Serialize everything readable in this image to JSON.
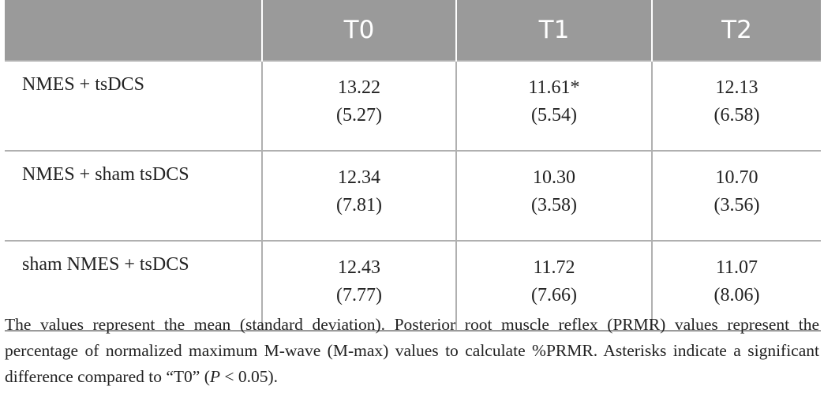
{
  "table": {
    "columns": [
      "",
      "T0",
      "T1",
      "T2"
    ],
    "rows": [
      {
        "label": "NMES + tsDCS",
        "cells": [
          {
            "mean": "13.22",
            "sd": "(5.27)"
          },
          {
            "mean": "11.61*",
            "sd": "(5.54)"
          },
          {
            "mean": "12.13",
            "sd": "(6.58)"
          }
        ]
      },
      {
        "label": "NMES + sham tsDCS",
        "cells": [
          {
            "mean": "12.34",
            "sd": "(7.81)"
          },
          {
            "mean": "10.30",
            "sd": "(3.58)"
          },
          {
            "mean": "10.70",
            "sd": "(3.56)"
          }
        ]
      },
      {
        "label": "sham NMES + tsDCS",
        "cells": [
          {
            "mean": "12.43",
            "sd": "(7.77)"
          },
          {
            "mean": "11.72",
            "sd": "(7.66)"
          },
          {
            "mean": "11.07",
            "sd": "(8.06)"
          }
        ]
      }
    ]
  },
  "footnote": {
    "text_before_p": "The values represent the mean (standard deviation). Posterior root muscle reflex (PRMR) values represent the percentage of normalized maximum M-wave (M-max) values to calculate %PRMR. Asterisks indicate a significant difference compared to “T0” (",
    "p_symbol": "P",
    "text_after_p": " < 0.05)."
  },
  "colors": {
    "header_bg": "#9a9a9a",
    "header_text": "#ffffff",
    "grid_line": "#b0b0b0",
    "body_text": "#222222"
  }
}
